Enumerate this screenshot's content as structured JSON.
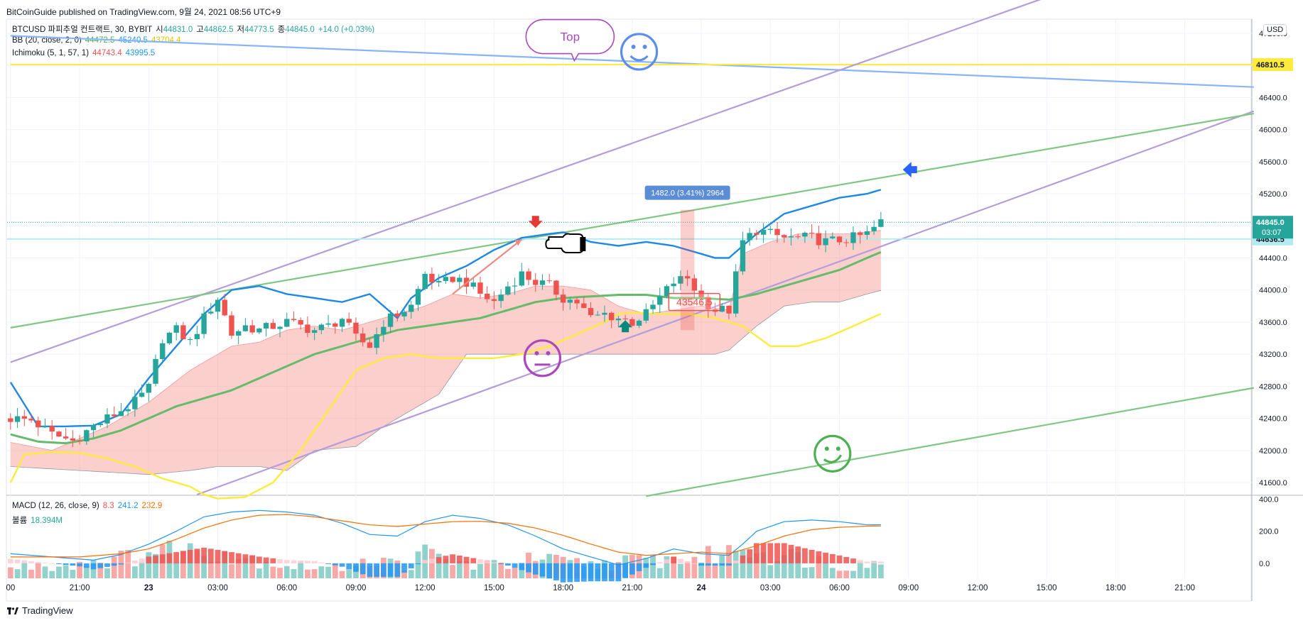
{
  "publisher": "BitCoinGuide published on TradingView.com, 9월 24, 2021 08:56 UTC+9",
  "legend": {
    "symbol": "BTCUSD 파피추얼 컨트랙트, 30, BYBIT",
    "ohlc": [
      {
        "label": "시",
        "value": "44831.0"
      },
      {
        "label": "고",
        "value": "44862.5"
      },
      {
        "label": "저",
        "value": "44773.5"
      },
      {
        "label": "종",
        "value": "44845.0"
      }
    ],
    "change": "+14.0 (+0.03%)",
    "bb": {
      "name": "BB (20, close, 2, 0)",
      "v1": "44472.5",
      "v2": "45240.5",
      "v3": "43704.4",
      "c1": "#4caf50",
      "c2": "#2196f3",
      "c3": "#ffeb3b"
    },
    "ichimoku": {
      "name": "Ichimoku (5, 1, 57, 1)",
      "v1": "44743.4",
      "v2": "43995.5",
      "c1": "#ef5350",
      "c2": "#2196f3"
    },
    "macd": {
      "name": "MACD (12, 26, close, 9)",
      "v1": "8.3",
      "v2": "241.2",
      "v3": "232.9",
      "c1": "#ef5350",
      "c2": "#2196f3",
      "c3": "#ff6d00"
    },
    "volume": {
      "name": "볼륨",
      "v1": "18.394M"
    }
  },
  "currency": "USD",
  "footer": {
    "brand": "TradingView"
  },
  "chart_data": {
    "type": "candlestick",
    "symbol": "BTCUSD",
    "interval": "30",
    "y_ticks": [
      41600.0,
      42000.0,
      42400.0,
      42800.0,
      43200.0,
      43600.0,
      44000.0,
      44400.0,
      44800.0,
      45200.0,
      45600.0,
      46000.0,
      46400.0,
      46800.0,
      47200.0
    ],
    "y_tick_labels": [
      "41600.0",
      "42000.0",
      "42400.0",
      "42800.0",
      "43200.0",
      "43600.0",
      "44000.0",
      "44400.0",
      "",
      "45200.0",
      "45600.0",
      "46000.0",
      "46400.0",
      "",
      "47200.0"
    ],
    "ylim": [
      41450,
      47350
    ],
    "macd_ticks": [
      0.0,
      200.0,
      400.0
    ],
    "macd_tick_labels": [
      "0.0",
      "200.0",
      "400.0"
    ],
    "macd_lim": [
      -80,
      420
    ],
    "x_bars_total": 180,
    "x_ticks": [
      {
        "label": "00",
        "bar": 0
      },
      {
        "label": "21:00",
        "bar": 10
      },
      {
        "label": "23",
        "bar": 20
      },
      {
        "label": "03:00",
        "bar": 30
      },
      {
        "label": "06:00",
        "bar": 40
      },
      {
        "label": "09:00",
        "bar": 50
      },
      {
        "label": "12:00",
        "bar": 60
      },
      {
        "label": "15:00",
        "bar": 70
      },
      {
        "label": "18:00",
        "bar": 80
      },
      {
        "label": "21:00",
        "bar": 90
      },
      {
        "label": "24",
        "bar": 100
      },
      {
        "label": "03:00",
        "bar": 110
      },
      {
        "label": "06:00",
        "bar": 120
      },
      {
        "label": "09:00",
        "bar": 130
      },
      {
        "label": "12:00",
        "bar": 140
      },
      {
        "label": "15:00",
        "bar": 150
      },
      {
        "label": "18:00",
        "bar": 160
      },
      {
        "label": "21:00",
        "bar": 170
      }
    ],
    "close_anchors": [
      [
        0,
        42400
      ],
      [
        3,
        42380
      ],
      [
        6,
        42200
      ],
      [
        9,
        42120
      ],
      [
        12,
        42300
      ],
      [
        15,
        42450
      ],
      [
        18,
        42600
      ],
      [
        20,
        42780
      ],
      [
        22,
        43400
      ],
      [
        24,
        43500
      ],
      [
        26,
        43350
      ],
      [
        28,
        43650
      ],
      [
        30,
        43900
      ],
      [
        32,
        43450
      ],
      [
        34,
        43550
      ],
      [
        36,
        43500
      ],
      [
        38,
        43550
      ],
      [
        40,
        43600
      ],
      [
        42,
        43550
      ],
      [
        44,
        43500
      ],
      [
        46,
        43550
      ],
      [
        48,
        43650
      ],
      [
        50,
        43400
      ],
      [
        52,
        43300
      ],
      [
        54,
        43600
      ],
      [
        56,
        43700
      ],
      [
        58,
        43800
      ],
      [
        60,
        44200
      ],
      [
        62,
        44050
      ],
      [
        64,
        44150
      ],
      [
        66,
        44100
      ],
      [
        68,
        43950
      ],
      [
        70,
        43850
      ],
      [
        72,
        44050
      ],
      [
        74,
        44200
      ],
      [
        76,
        44100
      ],
      [
        78,
        44050
      ],
      [
        80,
        43900
      ],
      [
        82,
        43850
      ],
      [
        84,
        43650
      ],
      [
        86,
        43700
      ],
      [
        88,
        43650
      ],
      [
        90,
        43600
      ],
      [
        92,
        43700
      ],
      [
        94,
        43900
      ],
      [
        96,
        44100
      ],
      [
        98,
        44150
      ],
      [
        100,
        43900
      ],
      [
        102,
        43750
      ],
      [
        104,
        43750
      ],
      [
        106,
        44600
      ],
      [
        108,
        44750
      ],
      [
        110,
        44700
      ],
      [
        112,
        44650
      ],
      [
        114,
        44650
      ],
      [
        116,
        44650
      ],
      [
        118,
        44600
      ],
      [
        120,
        44620
      ],
      [
        122,
        44650
      ],
      [
        124,
        44700
      ],
      [
        126,
        44845
      ]
    ],
    "volume_anchors": [
      [
        0,
        15
      ],
      [
        4,
        22
      ],
      [
        8,
        20
      ],
      [
        12,
        28
      ],
      [
        16,
        30
      ],
      [
        20,
        40
      ],
      [
        24,
        45
      ],
      [
        28,
        42
      ],
      [
        30,
        50
      ],
      [
        32,
        35
      ],
      [
        36,
        30
      ],
      [
        40,
        20
      ],
      [
        44,
        18
      ],
      [
        48,
        15
      ],
      [
        50,
        30
      ],
      [
        54,
        25
      ],
      [
        58,
        20
      ],
      [
        60,
        40
      ],
      [
        64,
        25
      ],
      [
        68,
        20
      ],
      [
        72,
        22
      ],
      [
        76,
        30
      ],
      [
        80,
        25
      ],
      [
        84,
        22
      ],
      [
        88,
        25
      ],
      [
        92,
        28
      ],
      [
        96,
        30
      ],
      [
        100,
        32
      ],
      [
        104,
        40
      ],
      [
        106,
        55
      ],
      [
        108,
        45
      ],
      [
        112,
        35
      ],
      [
        116,
        30
      ],
      [
        120,
        20
      ],
      [
        124,
        25
      ],
      [
        126,
        18
      ]
    ],
    "macd_line_anchors": [
      [
        0,
        60
      ],
      [
        6,
        40
      ],
      [
        12,
        20
      ],
      [
        16,
        55
      ],
      [
        20,
        120
      ],
      [
        24,
        200
      ],
      [
        28,
        290
      ],
      [
        32,
        320
      ],
      [
        36,
        330
      ],
      [
        40,
        320
      ],
      [
        44,
        300
      ],
      [
        48,
        250
      ],
      [
        52,
        180
      ],
      [
        56,
        170
      ],
      [
        60,
        260
      ],
      [
        64,
        300
      ],
      [
        68,
        280
      ],
      [
        72,
        240
      ],
      [
        76,
        170
      ],
      [
        80,
        90
      ],
      [
        84,
        40
      ],
      [
        88,
        -10
      ],
      [
        92,
        30
      ],
      [
        96,
        90
      ],
      [
        100,
        60
      ],
      [
        104,
        50
      ],
      [
        106,
        120
      ],
      [
        108,
        200
      ],
      [
        112,
        260
      ],
      [
        116,
        270
      ],
      [
        120,
        260
      ],
      [
        124,
        240
      ],
      [
        126,
        241
      ]
    ],
    "signal_anchors": [
      [
        0,
        40
      ],
      [
        10,
        40
      ],
      [
        16,
        60
      ],
      [
        20,
        90
      ],
      [
        24,
        150
      ],
      [
        28,
        220
      ],
      [
        32,
        270
      ],
      [
        36,
        300
      ],
      [
        40,
        305
      ],
      [
        44,
        290
      ],
      [
        48,
        265
      ],
      [
        52,
        240
      ],
      [
        56,
        230
      ],
      [
        60,
        245
      ],
      [
        64,
        260
      ],
      [
        68,
        262
      ],
      [
        72,
        250
      ],
      [
        76,
        220
      ],
      [
        80,
        175
      ],
      [
        84,
        120
      ],
      [
        88,
        70
      ],
      [
        92,
        50
      ],
      [
        96,
        60
      ],
      [
        100,
        70
      ],
      [
        104,
        60
      ],
      [
        108,
        110
      ],
      [
        112,
        170
      ],
      [
        116,
        210
      ],
      [
        120,
        225
      ],
      [
        124,
        232
      ],
      [
        126,
        233
      ]
    ],
    "bb_upper_anchors": [
      [
        0,
        42850
      ],
      [
        4,
        42300
      ],
      [
        8,
        42300
      ],
      [
        12,
        42310
      ],
      [
        16,
        42450
      ],
      [
        20,
        42900
      ],
      [
        24,
        43300
      ],
      [
        28,
        43700
      ],
      [
        32,
        44000
      ],
      [
        36,
        44050
      ],
      [
        40,
        43950
      ],
      [
        44,
        43900
      ],
      [
        48,
        43850
      ],
      [
        52,
        43950
      ],
      [
        56,
        43650
      ],
      [
        58,
        43900
      ],
      [
        62,
        44150
      ],
      [
        66,
        44300
      ],
      [
        70,
        44500
      ],
      [
        74,
        44650
      ],
      [
        78,
        44700
      ],
      [
        80,
        44720
      ],
      [
        84,
        44600
      ],
      [
        88,
        44550
      ],
      [
        92,
        44600
      ],
      [
        96,
        44550
      ],
      [
        100,
        44450
      ],
      [
        102,
        44400
      ],
      [
        104,
        44400
      ],
      [
        108,
        44700
      ],
      [
        112,
        44950
      ],
      [
        116,
        45050
      ],
      [
        120,
        45150
      ],
      [
        124,
        45200
      ],
      [
        126,
        45250
      ]
    ],
    "bb_middle_anchors": [
      [
        0,
        42200
      ],
      [
        4,
        42110
      ],
      [
        8,
        42090
      ],
      [
        12,
        42150
      ],
      [
        16,
        42250
      ],
      [
        20,
        42400
      ],
      [
        24,
        42550
      ],
      [
        28,
        42650
      ],
      [
        32,
        42750
      ],
      [
        36,
        42900
      ],
      [
        40,
        43050
      ],
      [
        44,
        43200
      ],
      [
        48,
        43300
      ],
      [
        52,
        43400
      ],
      [
        56,
        43500
      ],
      [
        60,
        43550
      ],
      [
        64,
        43600
      ],
      [
        68,
        43650
      ],
      [
        72,
        43750
      ],
      [
        76,
        43850
      ],
      [
        80,
        43900
      ],
      [
        84,
        43920
      ],
      [
        88,
        43940
      ],
      [
        92,
        43940
      ],
      [
        96,
        43900
      ],
      [
        100,
        43900
      ],
      [
        104,
        43880
      ],
      [
        108,
        43950
      ],
      [
        112,
        44050
      ],
      [
        116,
        44150
      ],
      [
        120,
        44250
      ],
      [
        124,
        44400
      ],
      [
        126,
        44472
      ]
    ],
    "bb_lower_anchors": [
      [
        0,
        41600
      ],
      [
        2,
        41950
      ],
      [
        6,
        41980
      ],
      [
        10,
        41970
      ],
      [
        14,
        41900
      ],
      [
        18,
        41800
      ],
      [
        22,
        41650
      ],
      [
        26,
        41550
      ],
      [
        28,
        41450
      ],
      [
        30,
        41400
      ],
      [
        34,
        41420
      ],
      [
        38,
        41600
      ],
      [
        42,
        42000
      ],
      [
        46,
        42500
      ],
      [
        50,
        43000
      ],
      [
        54,
        43150
      ],
      [
        58,
        43200
      ],
      [
        62,
        43150
      ],
      [
        66,
        43150
      ],
      [
        70,
        43150
      ],
      [
        74,
        43200
      ],
      [
        78,
        43300
      ],
      [
        82,
        43450
      ],
      [
        86,
        43600
      ],
      [
        88,
        43700
      ],
      [
        90,
        43720
      ],
      [
        94,
        43700
      ],
      [
        98,
        43700
      ],
      [
        102,
        43650
      ],
      [
        106,
        43550
      ],
      [
        110,
        43300
      ],
      [
        114,
        43300
      ],
      [
        118,
        43400
      ],
      [
        122,
        43550
      ],
      [
        126,
        43704
      ]
    ],
    "cloud_top_anchors": [
      [
        0,
        42100
      ],
      [
        6,
        42000
      ],
      [
        10,
        42150
      ],
      [
        14,
        42300
      ],
      [
        20,
        42600
      ],
      [
        26,
        43000
      ],
      [
        32,
        43300
      ],
      [
        36,
        43350
      ],
      [
        40,
        43500
      ],
      [
        44,
        43550
      ],
      [
        48,
        43500
      ],
      [
        52,
        43600
      ],
      [
        56,
        43700
      ],
      [
        60,
        43800
      ],
      [
        64,
        43950
      ],
      [
        68,
        43900
      ],
      [
        72,
        43950
      ],
      [
        76,
        44050
      ],
      [
        80,
        44050
      ],
      [
        84,
        44000
      ],
      [
        88,
        43800
      ],
      [
        92,
        43700
      ],
      [
        96,
        43750
      ],
      [
        100,
        43800
      ],
      [
        104,
        43750
      ],
      [
        106,
        44450
      ],
      [
        110,
        44600
      ],
      [
        114,
        44700
      ],
      [
        118,
        44700
      ],
      [
        122,
        44700
      ],
      [
        126,
        44743
      ]
    ],
    "cloud_bottom_anchors": [
      [
        0,
        41800
      ],
      [
        10,
        41750
      ],
      [
        20,
        41700
      ],
      [
        26,
        41750
      ],
      [
        30,
        41800
      ],
      [
        36,
        41800
      ],
      [
        40,
        41750
      ],
      [
        44,
        42000
      ],
      [
        50,
        42050
      ],
      [
        54,
        42300
      ],
      [
        58,
        42500
      ],
      [
        62,
        42700
      ],
      [
        66,
        43200
      ],
      [
        70,
        43200
      ],
      [
        74,
        43200
      ],
      [
        80,
        43200
      ],
      [
        84,
        43200
      ],
      [
        90,
        43200
      ],
      [
        96,
        43200
      ],
      [
        102,
        43200
      ],
      [
        104,
        43250
      ],
      [
        108,
        43550
      ],
      [
        112,
        43800
      ],
      [
        116,
        43850
      ],
      [
        120,
        43850
      ],
      [
        124,
        43950
      ],
      [
        126,
        43995
      ]
    ],
    "trendlines": [
      {
        "color": "#8ab4f8",
        "from": [
          0,
          47170
        ],
        "to": [
          180,
          46530
        ]
      },
      {
        "color": "#ffeb3b",
        "from": [
          0,
          46810
        ],
        "to": [
          180,
          46810
        ]
      },
      {
        "color": "#b39ddb",
        "from": [
          0,
          43100
        ],
        "to": [
          150,
          47650
        ]
      },
      {
        "color": "#b39ddb",
        "from": [
          27,
          41450
        ],
        "to": [
          180,
          46230
        ]
      },
      {
        "color": "#81c784",
        "from": [
          0,
          43530
        ],
        "to": [
          180,
          46200
        ]
      },
      {
        "color": "#81c784",
        "from": [
          92,
          41430
        ],
        "to": [
          180,
          42780
        ]
      }
    ],
    "last_price": {
      "value": 44845.0,
      "label": "44845.0",
      "countdown": "03:07",
      "color": "#26a69a"
    },
    "horizontal_level": {
      "value": 44636.5,
      "label": "44636.5",
      "color": "#b2ebf2"
    },
    "level_label": {
      "value": 46810.5,
      "label": "46810.5",
      "color": "#ffeb3b"
    },
    "measure": {
      "label": "1482.0 (3.41%) 2964",
      "from_bar": 97,
      "to_bar": 99,
      "low": 43500,
      "high": 45000
    },
    "price_tag": {
      "label": "43546.5",
      "bar": 99,
      "value": 43850
    },
    "annotations": [
      {
        "type": "callout",
        "text": "Top",
        "bar": 81,
        "value": 47150
      },
      {
        "type": "smiley-happy-icon",
        "bar": 91,
        "value": 46970,
        "color": "#5b8def"
      },
      {
        "type": "smiley-neutral-icon",
        "bar": 77,
        "value": 43150,
        "color": "#ab47bc"
      },
      {
        "type": "smiley-wink-icon",
        "bar": 119,
        "value": 41960,
        "color": "#4caf50"
      },
      {
        "type": "arrow-down-icon",
        "bar": 76,
        "value": 44800,
        "color": "#e53935"
      },
      {
        "type": "arrow-up-icon",
        "bar": 89,
        "value": 43580,
        "color": "#00897b"
      },
      {
        "type": "arrow-left-icon",
        "bar": 130,
        "value": 45500,
        "color": "#2962ff"
      },
      {
        "type": "pointing-hand-icon",
        "bar": 81,
        "value": 44590,
        "color": "#000000"
      }
    ]
  }
}
